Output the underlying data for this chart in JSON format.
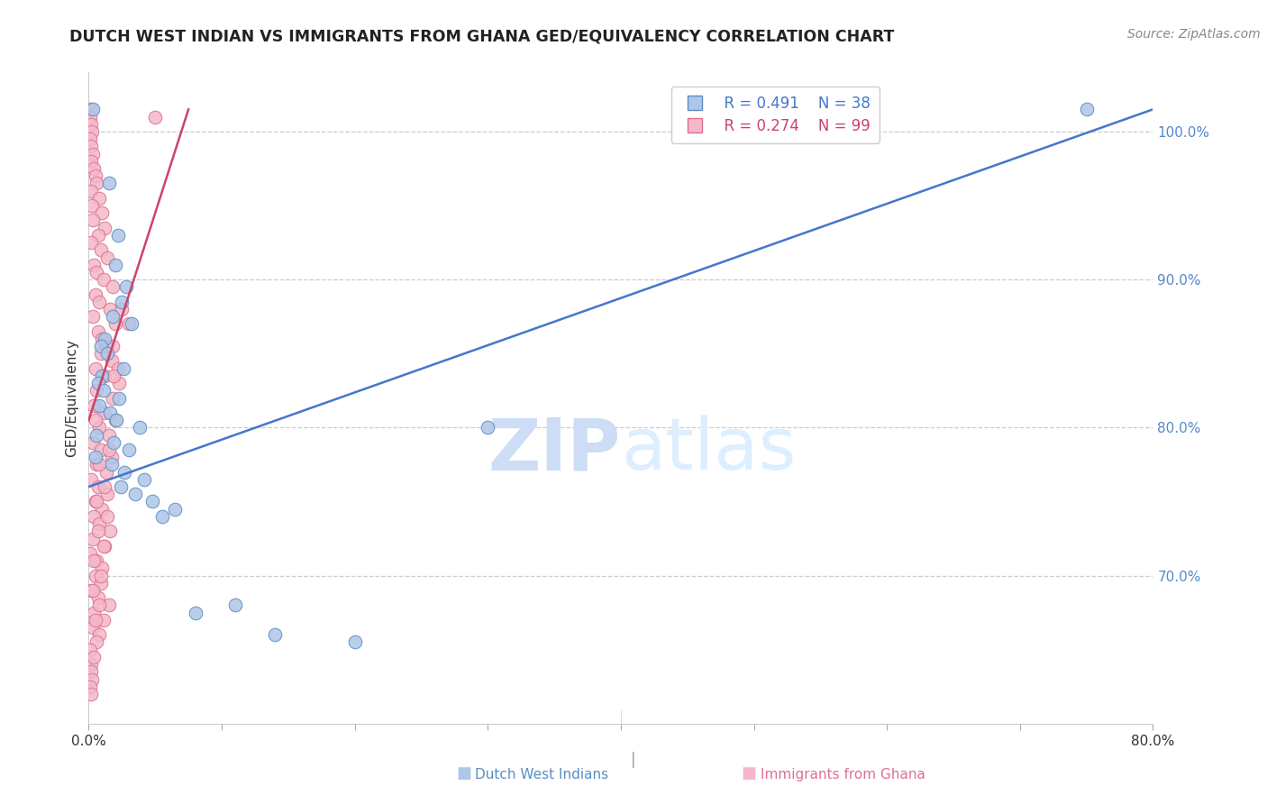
{
  "title": "DUTCH WEST INDIAN VS IMMIGRANTS FROM GHANA GED/EQUIVALENCY CORRELATION CHART",
  "source": "Source: ZipAtlas.com",
  "ylabel": "GED/Equivalency",
  "yright_ticks": [
    100.0,
    90.0,
    80.0,
    70.0
  ],
  "xlim": [
    0.0,
    80.0
  ],
  "ylim": [
    60.0,
    104.0
  ],
  "legend_blue_r": "R = 0.491",
  "legend_blue_n": "N = 38",
  "legend_pink_r": "R = 0.274",
  "legend_pink_n": "N = 99",
  "blue_color": "#aec6e8",
  "pink_color": "#f4b8c8",
  "blue_edge_color": "#5b8ec4",
  "pink_edge_color": "#e07090",
  "blue_line_color": "#4477cc",
  "pink_line_color": "#cc4466",
  "watermark_top": "ZIP",
  "watermark_bot": "atlas",
  "watermark_color": "#ddeeff",
  "blue_dots": [
    [
      0.3,
      101.5
    ],
    [
      1.5,
      96.5
    ],
    [
      2.2,
      93.0
    ],
    [
      2.0,
      91.0
    ],
    [
      2.8,
      89.5
    ],
    [
      2.5,
      88.5
    ],
    [
      1.8,
      87.5
    ],
    [
      3.2,
      87.0
    ],
    [
      1.2,
      86.0
    ],
    [
      0.9,
      85.5
    ],
    [
      1.4,
      85.0
    ],
    [
      2.6,
      84.0
    ],
    [
      1.0,
      83.5
    ],
    [
      0.7,
      83.0
    ],
    [
      1.1,
      82.5
    ],
    [
      2.3,
      82.0
    ],
    [
      0.8,
      81.5
    ],
    [
      1.6,
      81.0
    ],
    [
      2.1,
      80.5
    ],
    [
      3.8,
      80.0
    ],
    [
      0.6,
      79.5
    ],
    [
      1.9,
      79.0
    ],
    [
      3.0,
      78.5
    ],
    [
      0.5,
      78.0
    ],
    [
      1.7,
      77.5
    ],
    [
      2.7,
      77.0
    ],
    [
      4.2,
      76.5
    ],
    [
      2.4,
      76.0
    ],
    [
      3.5,
      75.5
    ],
    [
      4.8,
      75.0
    ],
    [
      6.5,
      74.5
    ],
    [
      5.5,
      74.0
    ],
    [
      8.0,
      67.5
    ],
    [
      11.0,
      68.0
    ],
    [
      75.0,
      101.5
    ],
    [
      30.0,
      80.0
    ],
    [
      20.0,
      65.5
    ],
    [
      14.0,
      66.0
    ]
  ],
  "pink_dots": [
    [
      0.08,
      101.5
    ],
    [
      0.12,
      101.0
    ],
    [
      0.18,
      100.5
    ],
    [
      0.25,
      100.0
    ],
    [
      5.0,
      101.0
    ],
    [
      0.1,
      99.5
    ],
    [
      0.2,
      99.0
    ],
    [
      0.3,
      98.5
    ],
    [
      0.15,
      98.0
    ],
    [
      0.35,
      97.5
    ],
    [
      0.5,
      97.0
    ],
    [
      0.6,
      96.5
    ],
    [
      0.15,
      96.0
    ],
    [
      0.8,
      95.5
    ],
    [
      0.25,
      95.0
    ],
    [
      1.0,
      94.5
    ],
    [
      0.3,
      94.0
    ],
    [
      1.2,
      93.5
    ],
    [
      0.7,
      93.0
    ],
    [
      0.2,
      92.5
    ],
    [
      0.9,
      92.0
    ],
    [
      1.4,
      91.5
    ],
    [
      0.4,
      91.0
    ],
    [
      0.6,
      90.5
    ],
    [
      1.1,
      90.0
    ],
    [
      1.8,
      89.5
    ],
    [
      0.5,
      89.0
    ],
    [
      0.8,
      88.5
    ],
    [
      1.6,
      88.0
    ],
    [
      0.3,
      87.5
    ],
    [
      2.0,
      87.0
    ],
    [
      0.7,
      86.5
    ],
    [
      1.0,
      86.0
    ],
    [
      1.3,
      85.5
    ],
    [
      0.9,
      85.0
    ],
    [
      1.7,
      84.5
    ],
    [
      0.5,
      84.0
    ],
    [
      1.2,
      83.5
    ],
    [
      2.3,
      83.0
    ],
    [
      0.6,
      82.5
    ],
    [
      1.8,
      82.0
    ],
    [
      0.4,
      81.5
    ],
    [
      1.1,
      81.0
    ],
    [
      2.0,
      80.5
    ],
    [
      0.8,
      80.0
    ],
    [
      1.5,
      79.5
    ],
    [
      0.3,
      79.0
    ],
    [
      0.9,
      78.5
    ],
    [
      1.7,
      78.0
    ],
    [
      0.6,
      77.5
    ],
    [
      1.3,
      77.0
    ],
    [
      0.2,
      76.5
    ],
    [
      0.7,
      76.0
    ],
    [
      1.4,
      75.5
    ],
    [
      0.5,
      75.0
    ],
    [
      1.0,
      74.5
    ],
    [
      0.4,
      74.0
    ],
    [
      0.8,
      73.5
    ],
    [
      1.6,
      73.0
    ],
    [
      0.3,
      72.5
    ],
    [
      1.2,
      72.0
    ],
    [
      0.1,
      71.5
    ],
    [
      0.6,
      71.0
    ],
    [
      1.0,
      70.5
    ],
    [
      0.5,
      70.0
    ],
    [
      0.9,
      69.5
    ],
    [
      0.2,
      69.0
    ],
    [
      0.7,
      68.5
    ],
    [
      1.5,
      68.0
    ],
    [
      0.4,
      67.5
    ],
    [
      1.1,
      67.0
    ],
    [
      0.3,
      66.5
    ],
    [
      0.8,
      66.0
    ],
    [
      0.6,
      65.5
    ],
    [
      0.1,
      65.0
    ],
    [
      0.2,
      64.0
    ],
    [
      0.15,
      63.5
    ],
    [
      0.25,
      63.0
    ],
    [
      0.1,
      62.5
    ],
    [
      0.2,
      62.0
    ],
    [
      2.5,
      88.0
    ],
    [
      3.0,
      87.0
    ],
    [
      1.8,
      85.5
    ],
    [
      2.2,
      84.0
    ],
    [
      0.5,
      80.5
    ],
    [
      1.5,
      78.5
    ],
    [
      0.8,
      77.5
    ],
    [
      1.2,
      76.0
    ],
    [
      0.6,
      75.0
    ],
    [
      1.4,
      74.0
    ],
    [
      0.7,
      73.0
    ],
    [
      1.1,
      72.0
    ],
    [
      0.4,
      71.0
    ],
    [
      0.9,
      70.0
    ],
    [
      0.3,
      69.0
    ],
    [
      0.8,
      68.0
    ],
    [
      0.5,
      67.0
    ],
    [
      0.35,
      64.5
    ],
    [
      1.9,
      83.5
    ]
  ],
  "blue_line": {
    "x": [
      0.0,
      80.0
    ],
    "y": [
      76.0,
      101.5
    ]
  },
  "pink_line": {
    "x": [
      0.0,
      7.5
    ],
    "y": [
      80.5,
      101.5
    ]
  },
  "xtick_positions": [
    0.0,
    10.0,
    20.0,
    30.0,
    40.0,
    50.0,
    60.0,
    70.0,
    80.0
  ],
  "xtick_labels": [
    "0.0%",
    "",
    "",
    "",
    "",
    "",
    "",
    "",
    "80.0%"
  ]
}
